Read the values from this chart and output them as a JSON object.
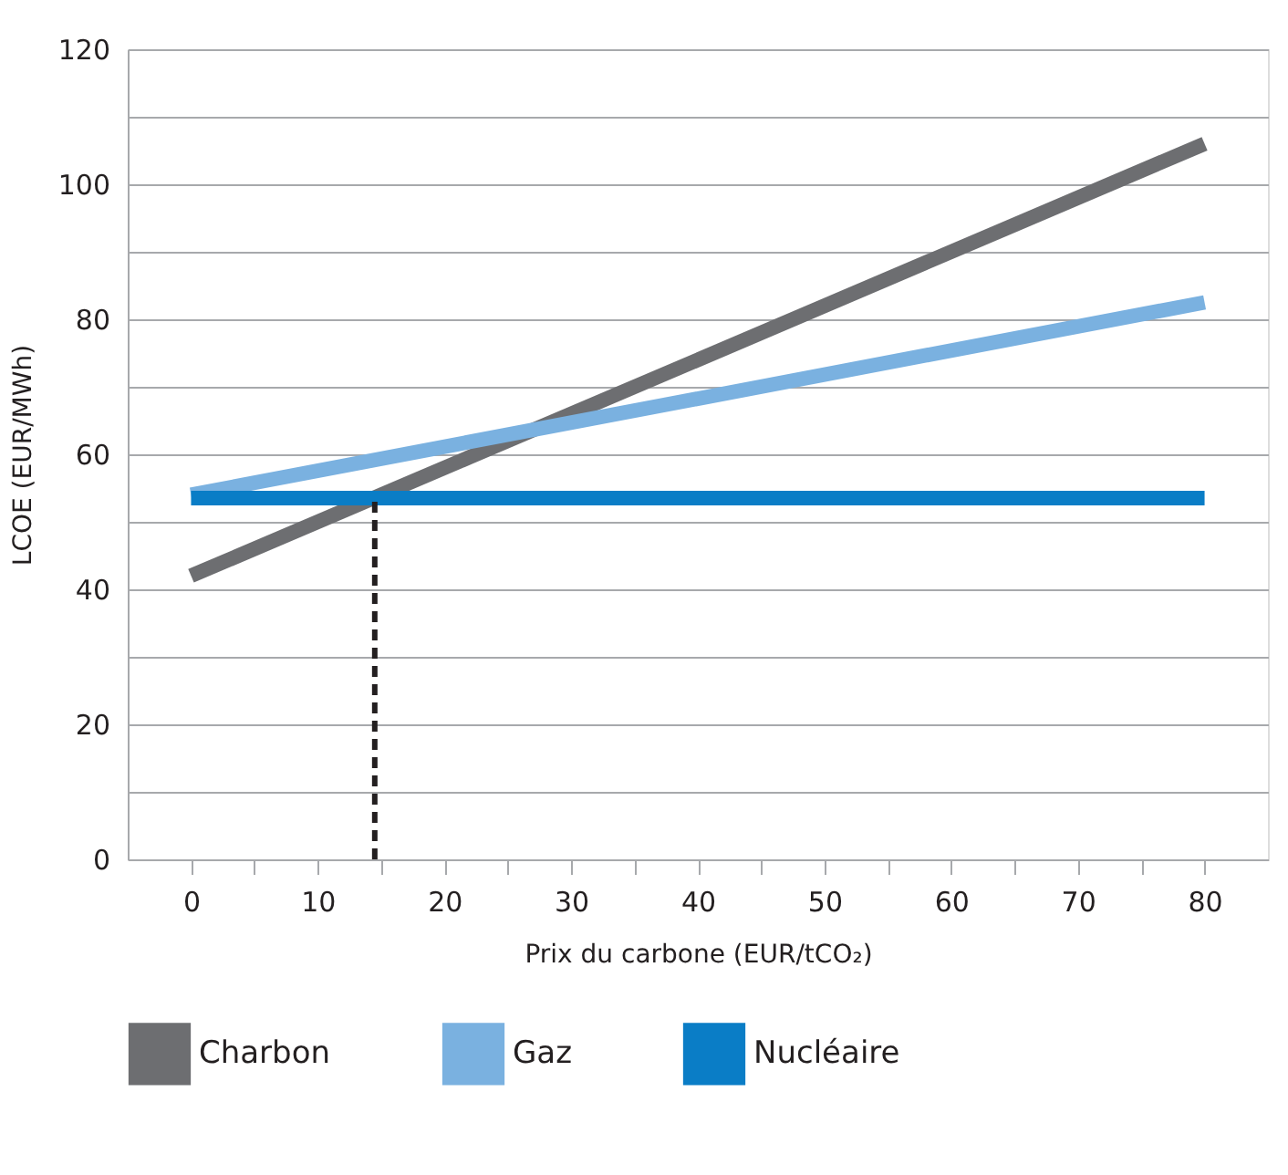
{
  "chart_data": {
    "type": "line",
    "xlabel": "Prix du carbone (EUR/tCO₂)",
    "ylabel": "LCOE (EUR/MWh)",
    "xlim": [
      -5,
      85
    ],
    "xticks": [
      0,
      {
        "value": 5,
        "label": null
      },
      10,
      {
        "value": 15,
        "label": null
      },
      20,
      {
        "value": 25,
        "label": null
      },
      30,
      {
        "value": 35,
        "label": null
      },
      40,
      {
        "value": 45,
        "label": null
      },
      50,
      {
        "value": 55,
        "label": null
      },
      60,
      {
        "value": 65,
        "label": null
      },
      70,
      {
        "value": 75,
        "label": null
      },
      80
    ],
    "ylim": [
      0,
      120
    ],
    "yticks": [
      0,
      {
        "value": 10,
        "label": null
      },
      20,
      {
        "value": 30,
        "label": null
      },
      40,
      {
        "value": 50,
        "label": null
      },
      60,
      {
        "value": 70,
        "label": null
      },
      80,
      {
        "value": 90,
        "label": null
      },
      100,
      {
        "value": 110,
        "label": null
      },
      120
    ],
    "grid": "y",
    "legend": "bottom",
    "line_style": "solid",
    "marker": "none",
    "series": [
      {
        "name": "Charbon",
        "color": "#6d6e71",
        "x": [
          0,
          80
        ],
        "values": [
          42,
          106
        ]
      },
      {
        "name": "Gaz",
        "color": "#7ab1e0",
        "x": [
          0,
          80
        ],
        "values": [
          54,
          82.5
        ]
      },
      {
        "name": "Nucléaire",
        "color": "#0a7dc6",
        "x": [
          0,
          80
        ],
        "values": [
          53.5,
          53.5
        ]
      },
      {
        "color": "#231f20",
        "x": [
          14.5,
          14.5
        ],
        "values": [
          0,
          53.5
        ],
        "line_style": "dashed"
      }
    ]
  }
}
